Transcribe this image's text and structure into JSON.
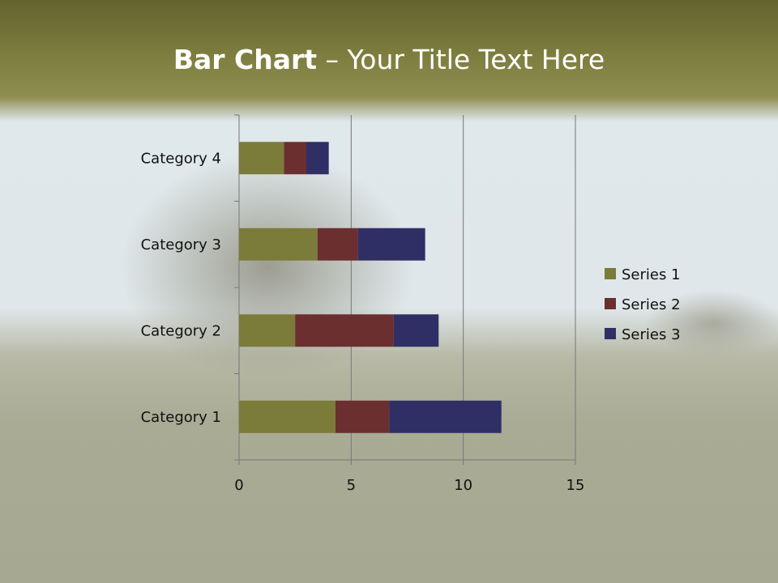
{
  "title": {
    "bold": "Bar Chart",
    "rest": " – Your Title Text Here"
  },
  "chart_data": {
    "type": "bar",
    "orientation": "horizontal",
    "stacked": true,
    "categories": [
      "Category 1",
      "Category 2",
      "Category 3",
      "Category 4"
    ],
    "series": [
      {
        "name": "Series 1",
        "values": [
          4.3,
          2.5,
          3.5,
          2
        ],
        "color": "#7b7b3a"
      },
      {
        "name": "Series 2",
        "values": [
          2.4,
          4.4,
          1.8,
          1
        ],
        "color": "#6b2f2f"
      },
      {
        "name": "Series 3",
        "values": [
          5,
          2,
          3,
          1
        ],
        "color": "#2f2f66"
      }
    ],
    "xlim": [
      0,
      15
    ],
    "xticks": [
      0,
      5,
      10,
      15
    ],
    "grid": true,
    "legend": "right"
  }
}
